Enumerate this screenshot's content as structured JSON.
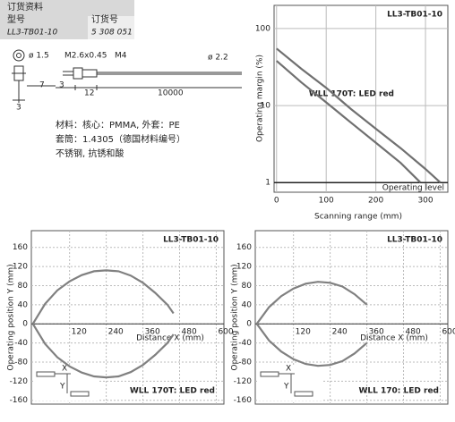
{
  "order_info": {
    "title": "订货资料",
    "type_label": "型号",
    "type_value": "LL3-TB01-10",
    "order_label": "订货号",
    "order_value": "5 308 051"
  },
  "drawing": {
    "dia_core": "ø 1.5",
    "thread": "M2.6x0.45",
    "nut": "M4",
    "dia_cable": "ø 2.2",
    "len_a": "7",
    "len_b": "3",
    "len_c": "12",
    "len_d": "10000",
    "len_e": "3"
  },
  "materials": [
    "材料：核心：PMMA, 外套：PE",
    "套筒：1.4305（德国材料编号）",
    "不锈钢, 抗锈和酸"
  ],
  "chart_data": [
    {
      "type": "line",
      "title": "LL3-TB01-10",
      "subtitle": "WLL 170T: LED red",
      "x_label": "Scanning range (mm)",
      "y_label": "Operating margin (%)",
      "log_y": true,
      "xlim": [
        -5,
        345
      ],
      "xticks": [
        0,
        100,
        200,
        300
      ],
      "ylim": [
        0.75,
        200
      ],
      "yticks": [
        1,
        10,
        100
      ],
      "grid": true,
      "operating_level": {
        "label": "Operating level",
        "value": 1
      },
      "series": [
        {
          "color": "#707070",
          "x": [
            0,
            50,
            100,
            150,
            200,
            250,
            300,
            330
          ],
          "values": [
            55,
            30,
            17,
            9,
            5,
            2.8,
            1.5,
            1
          ]
        },
        {
          "color": "#707070",
          "x": [
            0,
            50,
            100,
            150,
            200,
            250,
            290
          ],
          "values": [
            38,
            20,
            11,
            6,
            3.3,
            1.8,
            1
          ]
        }
      ]
    },
    {
      "type": "line",
      "title": "LL3-TB01-10",
      "subtitle": "WLL 170T: LED red",
      "x_label": "Distance X (mm)",
      "y_label": "Operating position Y (mm)",
      "xlim": [
        -5,
        625
      ],
      "xticks": [
        120,
        240,
        360,
        480,
        600
      ],
      "ylim": [
        -168,
        195
      ],
      "yticks": [
        -160,
        -120,
        -80,
        -40,
        0,
        40,
        80,
        120,
        160
      ],
      "grid": true,
      "inset_labels": {
        "x": "X",
        "y": "Y"
      },
      "series": [
        {
          "color": "#808080",
          "x": [
            0,
            40,
            80,
            120,
            160,
            200,
            240,
            280,
            320,
            360,
            400,
            440,
            460
          ],
          "values": [
            0,
            42,
            70,
            89,
            102,
            110,
            112,
            110,
            101,
            86,
            65,
            40,
            22
          ]
        },
        {
          "color": "#808080",
          "x": [
            0,
            40,
            80,
            120,
            160,
            200,
            240,
            280,
            320,
            360,
            400,
            440,
            460
          ],
          "values": [
            0,
            -42,
            -70,
            -89,
            -102,
            -110,
            -112,
            -110,
            -101,
            -86,
            -65,
            -40,
            -22
          ]
        }
      ]
    },
    {
      "type": "line",
      "title": "LL3-TB01-10",
      "subtitle": "WLL 170: LED red",
      "x_label": "Distance X (mm)",
      "y_label": "Operating position Y (mm)",
      "xlim": [
        -5,
        625
      ],
      "xticks": [
        120,
        240,
        360,
        480,
        600
      ],
      "ylim": [
        -168,
        195
      ],
      "yticks": [
        -160,
        -120,
        -80,
        -40,
        0,
        40,
        80,
        120,
        160
      ],
      "grid": true,
      "inset_labels": {
        "x": "X",
        "y": "Y"
      },
      "series": [
        {
          "color": "#808080",
          "x": [
            0,
            40,
            80,
            120,
            160,
            200,
            240,
            280,
            320,
            360
          ],
          "values": [
            0,
            35,
            58,
            74,
            84,
            88,
            86,
            78,
            62,
            40
          ]
        },
        {
          "color": "#808080",
          "x": [
            0,
            40,
            80,
            120,
            160,
            200,
            240,
            280,
            320,
            360
          ],
          "values": [
            0,
            -35,
            -58,
            -74,
            -84,
            -88,
            -86,
            -78,
            -62,
            -40
          ]
        }
      ]
    }
  ]
}
